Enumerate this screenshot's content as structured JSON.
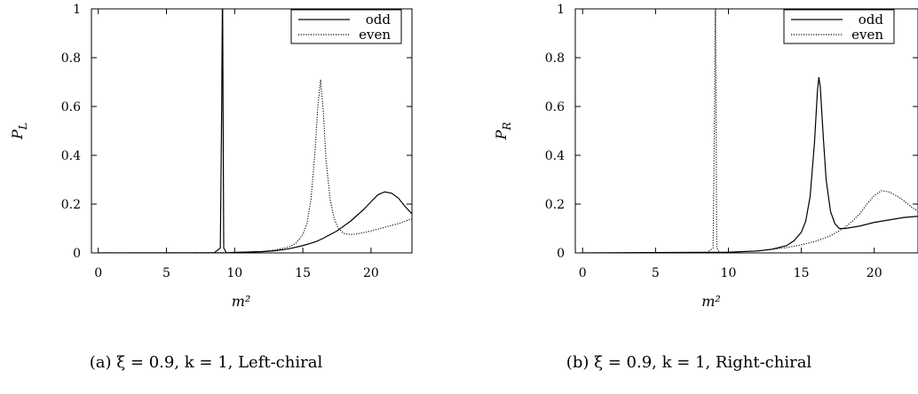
{
  "chart_data": [
    {
      "type": "line",
      "xlabel": "m²",
      "ylabel_main": "P",
      "ylabel_sub": "L",
      "caption": "(a) ξ = 0.9,  k = 1, Left-chiral",
      "xlim": [
        -0.5,
        23
      ],
      "ylim": [
        0,
        1
      ],
      "xticks": [
        0,
        5,
        10,
        15,
        20
      ],
      "yticks": [
        0,
        0.2,
        0.4,
        0.6,
        0.8,
        1
      ],
      "legend_position": "top-right",
      "series": [
        {
          "name": "odd",
          "style": "solid",
          "x": [
            0,
            8.5,
            8.95,
            9.05,
            9.1,
            9.12,
            9.15,
            9.2,
            9.4,
            10,
            12,
            13,
            14,
            15,
            15.5,
            16,
            16.5,
            17,
            17.5,
            18,
            18.5,
            19,
            19.5,
            20,
            20.5,
            21,
            21.5,
            22,
            22.5,
            23
          ],
          "y": [
            0,
            0,
            0.02,
            0.6,
            1.0,
            1.0,
            0.6,
            0.02,
            0.0,
            0.002,
            0.005,
            0.009,
            0.017,
            0.03,
            0.038,
            0.047,
            0.06,
            0.075,
            0.09,
            0.11,
            0.13,
            0.155,
            0.18,
            0.21,
            0.238,
            0.25,
            0.245,
            0.225,
            0.19,
            0.16
          ]
        },
        {
          "name": "even",
          "style": "dotted",
          "x": [
            0,
            10,
            12,
            13,
            14,
            14.5,
            15,
            15.3,
            15.6,
            15.9,
            16.1,
            16.3,
            16.5,
            16.7,
            17,
            17.3,
            17.6,
            18,
            18.5,
            19,
            20,
            21,
            22,
            23
          ],
          "y": [
            0,
            0.002,
            0.006,
            0.012,
            0.025,
            0.04,
            0.075,
            0.12,
            0.22,
            0.42,
            0.6,
            0.71,
            0.58,
            0.38,
            0.22,
            0.14,
            0.1,
            0.08,
            0.075,
            0.078,
            0.09,
            0.105,
            0.12,
            0.14
          ]
        }
      ]
    },
    {
      "type": "line",
      "xlabel": "m²",
      "ylabel_main": "P",
      "ylabel_sub": "R",
      "caption": "(b) ξ = 0.9,  k = 1, Right-chiral",
      "xlim": [
        -0.5,
        23
      ],
      "ylim": [
        0,
        1
      ],
      "xticks": [
        0,
        5,
        10,
        15,
        20
      ],
      "yticks": [
        0,
        0.2,
        0.4,
        0.6,
        0.8,
        1
      ],
      "legend_position": "top-right",
      "series": [
        {
          "name": "odd",
          "style": "solid",
          "x": [
            0,
            10,
            12,
            13,
            14,
            14.5,
            15,
            15.3,
            15.6,
            15.9,
            16.1,
            16.2,
            16.3,
            16.5,
            16.7,
            17,
            17.3,
            17.6,
            18,
            19,
            20,
            21,
            22,
            23
          ],
          "y": [
            0,
            0.003,
            0.008,
            0.015,
            0.03,
            0.05,
            0.085,
            0.13,
            0.23,
            0.45,
            0.66,
            0.72,
            0.68,
            0.48,
            0.3,
            0.17,
            0.12,
            0.1,
            0.1,
            0.11,
            0.125,
            0.135,
            0.145,
            0.15
          ]
        },
        {
          "name": "even",
          "style": "dotted",
          "x": [
            0,
            8.5,
            8.95,
            9.05,
            9.1,
            9.12,
            9.15,
            9.2,
            9.4,
            10,
            12,
            14,
            15,
            16,
            17,
            18,
            18.5,
            19,
            19.5,
            20,
            20.5,
            21,
            21.5,
            22,
            22.5,
            23
          ],
          "y": [
            0,
            0,
            0.02,
            0.6,
            1.0,
            1.0,
            0.6,
            0.02,
            0.0,
            0.003,
            0.008,
            0.022,
            0.033,
            0.048,
            0.07,
            0.105,
            0.13,
            0.16,
            0.2,
            0.235,
            0.255,
            0.25,
            0.235,
            0.215,
            0.19,
            0.17
          ]
        }
      ]
    }
  ]
}
